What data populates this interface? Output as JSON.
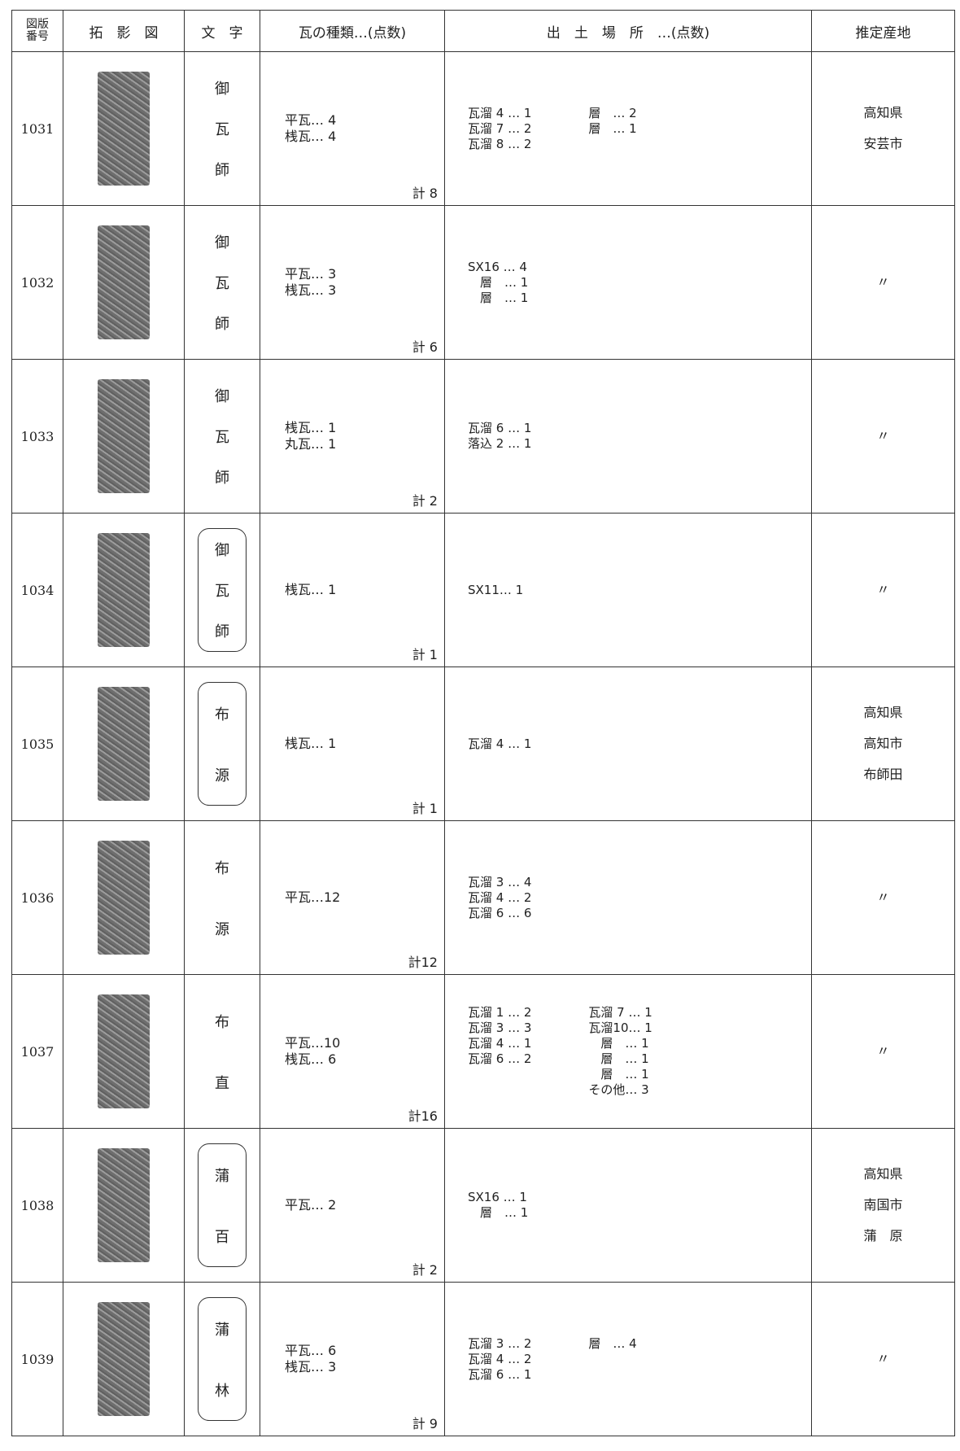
{
  "table": {
    "headers": [
      [
        "図版",
        "番号"
      ],
      "拓　影　図",
      "文　字",
      "瓦の種類…(点数)",
      "出　土　場　所　…(点数)",
      "推定産地"
    ],
    "rows": [
      {
        "id": "1031",
        "chars": [
          "御",
          "瓦",
          "師"
        ],
        "boxed": false,
        "types": [
          "平瓦… 4",
          "桟瓦… 4"
        ],
        "total": "計 8",
        "locations": [
          [
            "瓦溜 4 … 1",
            "瓦溜 7 … 2",
            "瓦溜 8 … 2"
          ],
          [
            "層　… 2",
            "層　… 1"
          ]
        ],
        "origin": [
          "高知県",
          "安芸市"
        ]
      },
      {
        "id": "1032",
        "chars": [
          "御",
          "瓦",
          "師"
        ],
        "boxed": false,
        "types": [
          "平瓦… 3",
          "桟瓦… 3"
        ],
        "total": "計 6",
        "locations": [
          [
            "SX16 … 4",
            "　層　… 1",
            "　層　… 1"
          ]
        ],
        "origin": [
          "〃"
        ]
      },
      {
        "id": "1033",
        "chars": [
          "御",
          "瓦",
          "師"
        ],
        "boxed": false,
        "types": [
          "桟瓦… 1",
          "丸瓦… 1"
        ],
        "total": "計 2",
        "locations": [
          [
            "瓦溜 6 … 1",
            "落込 2 … 1"
          ]
        ],
        "origin": [
          "〃"
        ]
      },
      {
        "id": "1034",
        "chars": [
          "御",
          "瓦",
          "師"
        ],
        "boxed": true,
        "types": [
          "桟瓦… 1"
        ],
        "total": "計 1",
        "locations": [
          [
            "SX11… 1"
          ]
        ],
        "origin": [
          "〃"
        ]
      },
      {
        "id": "1035",
        "chars": [
          "布",
          "源"
        ],
        "boxed": true,
        "types": [
          "桟瓦… 1"
        ],
        "total": "計 1",
        "locations": [
          [
            "瓦溜 4 … 1"
          ]
        ],
        "origin": [
          "高知県",
          "高知市",
          "布師田"
        ]
      },
      {
        "id": "1036",
        "chars": [
          "布",
          "源"
        ],
        "boxed": false,
        "types": [
          "平瓦…12"
        ],
        "total": "計12",
        "locations": [
          [
            "瓦溜 3 … 4",
            "瓦溜 4 … 2",
            "瓦溜 6 … 6"
          ]
        ],
        "origin": [
          "〃"
        ]
      },
      {
        "id": "1037",
        "chars": [
          "布",
          "直"
        ],
        "boxed": false,
        "types": [
          "平瓦…10",
          "桟瓦… 6"
        ],
        "total": "計16",
        "locations": [
          [
            "瓦溜 1 … 2",
            "瓦溜 3 … 3",
            "瓦溜 4 … 1",
            "瓦溜 6 … 2"
          ],
          [
            "瓦溜 7 … 1",
            "瓦溜10… 1",
            "　層　… 1",
            "　層　… 1",
            "　層　… 1",
            "その他… 3"
          ]
        ],
        "origin": [
          "〃"
        ]
      },
      {
        "id": "1038",
        "chars": [
          "蒲",
          "百"
        ],
        "boxed": true,
        "types": [
          "平瓦… 2"
        ],
        "total": "計 2",
        "locations": [
          [
            "SX16 … 1",
            "　層　… 1"
          ]
        ],
        "origin": [
          "高知県",
          "南国市",
          "蒲　原"
        ]
      },
      {
        "id": "1039",
        "chars": [
          "蒲",
          "林"
        ],
        "boxed": true,
        "types": [
          "平瓦… 6",
          "桟瓦… 3"
        ],
        "total": "計 9",
        "locations": [
          [
            "瓦溜 3 … 2",
            "瓦溜 4 … 2",
            "瓦溜 6 … 1"
          ],
          [
            "層　… 4"
          ]
        ],
        "origin": [
          "〃"
        ]
      }
    ]
  }
}
